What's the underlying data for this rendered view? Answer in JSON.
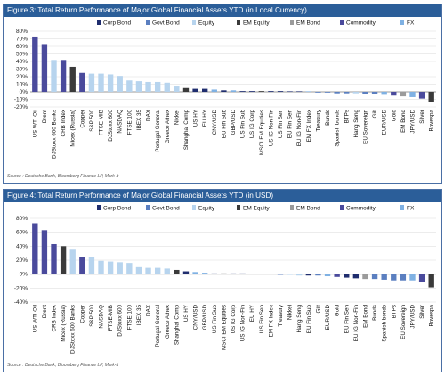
{
  "charts": [
    {
      "title": "Figure 3: Total Return Performance of Major Global Financial Assets YTD (in Local Currency)",
      "source": "Source : Deutsche Bank, Bloomberg Finance LP, Mark-It"
    },
    {
      "title": "Figure 4: Total Return Performance of Major Global Financial Assets YTD (in USD)",
      "source": "Source : Deutsche Bank, Bloomberg Finance LP, Mark-It"
    }
  ],
  "legend_items": [
    {
      "name": "Corp Bond",
      "color": "#1f2d6e"
    },
    {
      "name": "Govt Bond",
      "color": "#5b7fc0"
    },
    {
      "name": "Equity",
      "color": "#b7d4ee"
    },
    {
      "name": "EM Equity",
      "color": "#3a3a3a"
    },
    {
      "name": "EM Bond",
      "color": "#9b9b9b"
    },
    {
      "name": "Commodity",
      "color": "#4a4a9c"
    },
    {
      "name": "FX",
      "color": "#7fb1e3"
    }
  ],
  "chart_data": [
    {
      "type": "bar",
      "title": "Figure 3: Total Return Performance of Major Global Financial Assets YTD (in Local Currency)",
      "ylim": [
        -20,
        80
      ],
      "yticks": [
        "-20%",
        "-10%",
        "0%",
        "10%",
        "20%",
        "30%",
        "40%",
        "50%",
        "60%",
        "70%",
        "80%"
      ],
      "grid": true,
      "legend_position": "top",
      "categories": [
        "US WTI Oil",
        "Brent",
        "DJStoxx 600 Banks",
        "CRB Index",
        "Micex (Russia)",
        "Copper",
        "S&P 500",
        "FTSE MIB",
        "DJStoxx 600",
        "NASDAQ",
        "FTSE 100",
        "IBEX 35",
        "DAX",
        "Portugal General",
        "Greece Athex",
        "Nikkei",
        "Shanghai Comp",
        "US HY",
        "EU HY",
        "CNY/USD",
        "EU Fin Sub",
        "GBP/USD",
        "US Fin Sub",
        "US IG Corp",
        "MSCI EM Equities",
        "US IG Non-Fin",
        "US Fin Sen",
        "EU Fin Sen",
        "EU IG Non-Fin",
        "EM FX Index",
        "Treasury",
        "Bunds",
        "Spanish bonds",
        "BTPs",
        "Hang Seng",
        "EU Sovereign",
        "Gilt",
        "EUR/USD",
        "Gold",
        "EM Bond",
        "JPY/USD",
        "Silver",
        "Bovespa"
      ],
      "series_class": [
        "Commodity",
        "Commodity",
        "Equity",
        "Commodity",
        "EM Equity",
        "Commodity",
        "Equity",
        "Equity",
        "Equity",
        "Equity",
        "Equity",
        "Equity",
        "Equity",
        "Equity",
        "Equity",
        "Equity",
        "EM Equity",
        "Corp Bond",
        "Corp Bond",
        "FX",
        "Corp Bond",
        "FX",
        "Corp Bond",
        "Corp Bond",
        "EM Equity",
        "Corp Bond",
        "Corp Bond",
        "Corp Bond",
        "Corp Bond",
        "FX",
        "Govt Bond",
        "Govt Bond",
        "Govt Bond",
        "Govt Bond",
        "Equity",
        "Govt Bond",
        "Govt Bond",
        "FX",
        "Commodity",
        "EM Bond",
        "FX",
        "Commodity",
        "EM Equity"
      ],
      "values": [
        73,
        63,
        42,
        42,
        33,
        25,
        24,
        24,
        23,
        21,
        15,
        14,
        13,
        13,
        12,
        7,
        5,
        4,
        4,
        3,
        2,
        2,
        1,
        1,
        1,
        1,
        1,
        0,
        0,
        0,
        -1,
        -1,
        -2,
        -2,
        -2,
        -3,
        -3,
        -4,
        -5,
        -6,
        -7,
        -9,
        -14
      ]
    },
    {
      "type": "bar",
      "title": "Figure 4: Total Return Performance of Major Global Financial Assets YTD (in USD)",
      "ylim": [
        -40,
        80
      ],
      "yticks": [
        "-40%",
        "-20%",
        "0%",
        "20%",
        "40%",
        "60%",
        "80%"
      ],
      "grid": true,
      "legend_position": "top",
      "categories": [
        "US WTI Oil",
        "Brent",
        "CRB Index",
        "Micex (Russia)",
        "DJStoxx 600 Banks",
        "Copper",
        "S&P 500",
        "NASDAQ",
        "FTSE-MIB",
        "DJStoxx 600",
        "FTSE 100",
        "IBEX 35",
        "DAX",
        "Portugal General",
        "Greece Athex",
        "Shanghai Comp",
        "US HY",
        "CNY/USD",
        "GBP/USD",
        "US Fin Sub",
        "MSCI EM Equities",
        "US IG Corp",
        "US IG Non-Fin",
        "EU HY",
        "US Fin Sen",
        "EM FX Index",
        "Treasury",
        "Nikkei",
        "Hang Seng",
        "EU Fin Sub",
        "Gilt",
        "EUR/USD",
        "Gold",
        "EU Fin Sen",
        "EU IG Non-Fin",
        "EM Bond",
        "Bunds",
        "Spanish bonds",
        "BTPs",
        "EU Sovereign",
        "JPY/USD",
        "Silver",
        "Bovespa"
      ],
      "series_class": [
        "Commodity",
        "Commodity",
        "Commodity",
        "EM Equity",
        "Equity",
        "Commodity",
        "Equity",
        "Equity",
        "Equity",
        "Equity",
        "Equity",
        "Equity",
        "Equity",
        "Equity",
        "Equity",
        "EM Equity",
        "Corp Bond",
        "FX",
        "FX",
        "Corp Bond",
        "EM Equity",
        "Corp Bond",
        "Corp Bond",
        "Corp Bond",
        "Corp Bond",
        "FX",
        "Govt Bond",
        "Equity",
        "Equity",
        "Corp Bond",
        "Govt Bond",
        "FX",
        "Commodity",
        "Corp Bond",
        "Corp Bond",
        "EM Bond",
        "Govt Bond",
        "Govt Bond",
        "Govt Bond",
        "Govt Bond",
        "FX",
        "Commodity",
        "EM Equity"
      ],
      "values": [
        73,
        63,
        43,
        40,
        35,
        25,
        24,
        19,
        18,
        17,
        16,
        10,
        9,
        9,
        8,
        6,
        4,
        3,
        2,
        1,
        1,
        1,
        1,
        0,
        0,
        0,
        -1,
        -1,
        -2,
        -2,
        -2,
        -3,
        -4,
        -5,
        -6,
        -7,
        -7,
        -8,
        -9,
        -9,
        -9,
        -11,
        -19
      ]
    }
  ]
}
